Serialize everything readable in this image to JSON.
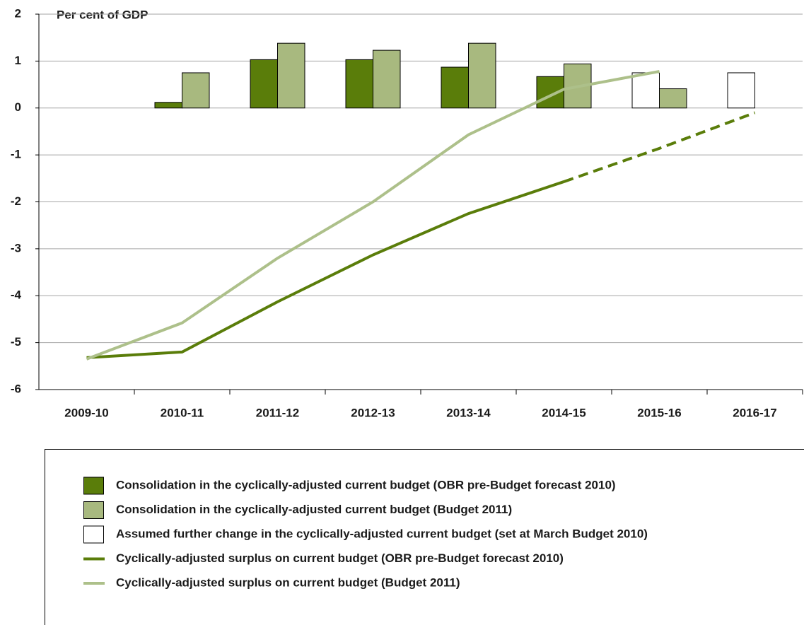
{
  "chart_data": {
    "type": "bar",
    "annotation": "Per cent of GDP",
    "categories": [
      "2009-10",
      "2010-11",
      "2011-12",
      "2012-13",
      "2013-14",
      "2014-15",
      "2015-16",
      "2016-17"
    ],
    "series": [
      {
        "name": "Consolidation in the cyclically-adjusted current budget (OBR pre-Budget forecast 2010)",
        "type": "bar",
        "slot": 0,
        "color": "#5a7d0a",
        "values": [
          null,
          0.12,
          1.03,
          1.03,
          0.87,
          0.67,
          null,
          null
        ]
      },
      {
        "name": "Consolidation in the cyclically-adjusted current budget (Budget 2011)",
        "type": "bar",
        "slot": 1,
        "color": "#a8b97f",
        "values": [
          null,
          0.75,
          1.38,
          1.23,
          1.38,
          0.94,
          0.41,
          null
        ]
      },
      {
        "name": "Assumed further change in the cyclically-adjusted current budget (set at March Budget 2010)",
        "type": "bar",
        "slot": 0,
        "color": "#ffffff",
        "values": [
          null,
          null,
          null,
          null,
          null,
          null,
          0.75,
          0.75
        ]
      },
      {
        "name": "Cyclically-adjusted surplus on current budget (OBR pre-Budget forecast 2010)",
        "type": "line",
        "color": "#5a7d0a",
        "dashed_from": 5,
        "values": [
          -5.32,
          -5.2,
          -4.13,
          -3.13,
          -2.25,
          -1.57,
          -0.86,
          -0.1
        ]
      },
      {
        "name": "Cyclically-adjusted surplus on current budget (Budget 2011)",
        "type": "line",
        "color": "#adc08a",
        "values": [
          -5.35,
          -4.58,
          -3.2,
          -2.0,
          -0.57,
          0.4,
          0.78,
          null
        ]
      }
    ],
    "ylim": [
      -6,
      2
    ],
    "yticks": [
      -6,
      -5,
      -4,
      -3,
      -2,
      -1,
      0,
      1,
      2
    ],
    "grid": true
  }
}
